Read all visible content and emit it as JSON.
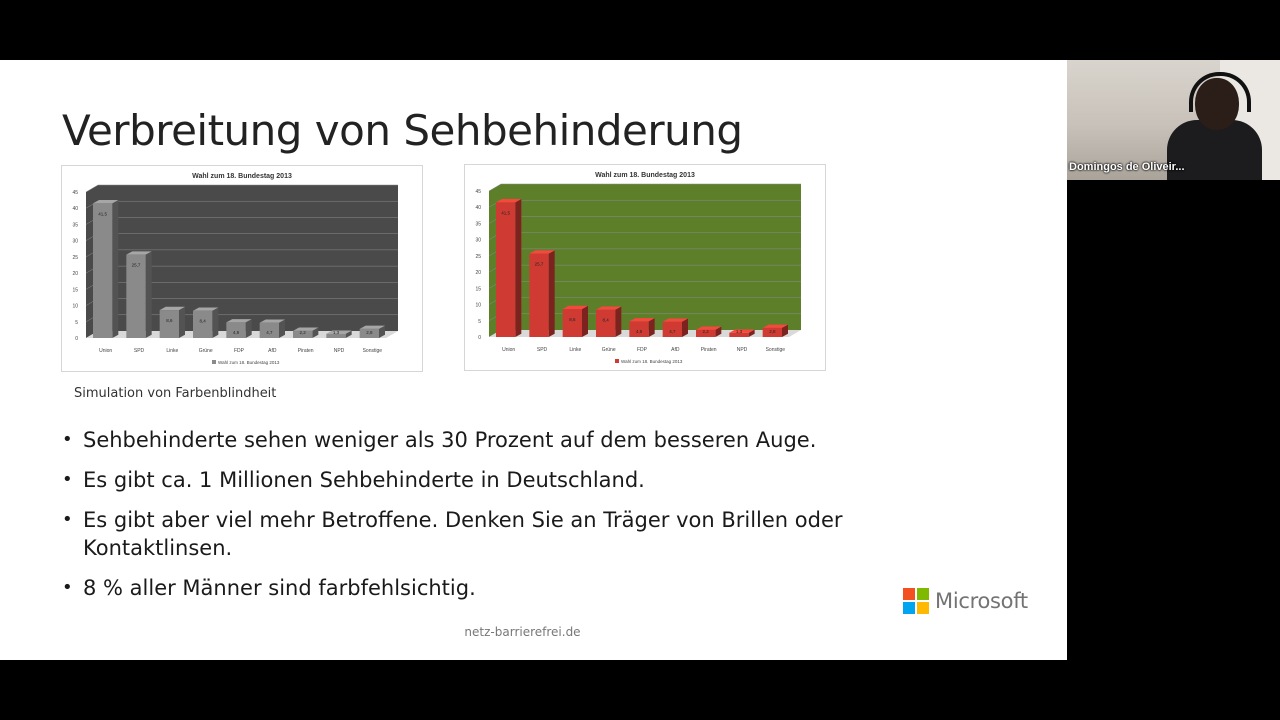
{
  "slide": {
    "title": "Verbreitung von Sehbehinderung",
    "caption": "Simulation von Farbenblindheit",
    "bullets": [
      "Sehbehinderte sehen weniger als 30 Prozent auf dem besseren Auge.",
      "Es gibt ca. 1 Millionen Sehbehinderte in Deutschland.",
      "Es gibt aber viel mehr Betroffene. Denken Sie an Träger von Brillen oder Kontaktlinsen.",
      "8 % aller Männer sind farbfehlsichtig."
    ],
    "footer": "netz-barrierefrei.de",
    "logo_text": "Microsoft",
    "logo_colors": [
      "#f25022",
      "#7fba00",
      "#00a4ef",
      "#ffb900"
    ]
  },
  "participant": {
    "name": "Domingos de Oliveir..."
  },
  "chart_data": [
    {
      "type": "bar",
      "title": "Wahl zum 18. Bundestag 2013",
      "categories": [
        "Union",
        "SPD",
        "Linke",
        "Grüne",
        "FDP",
        "AfD",
        "Piraten",
        "NPD",
        "Sonstige"
      ],
      "series": [
        {
          "name": "Wahl zum 18. Bundestag 2013",
          "values": [
            41.5,
            25.7,
            8.6,
            8.4,
            4.8,
            4.7,
            2.2,
            1.3,
            2.8
          ]
        }
      ],
      "ylim": [
        0,
        45
      ],
      "yticks": [
        0,
        5,
        10,
        15,
        20,
        25,
        30,
        35,
        40,
        45
      ],
      "bar_color": "#8a8a8a",
      "plot_background": "#4a4a4a",
      "legend": "bottom",
      "grid": true
    },
    {
      "type": "bar",
      "title": "Wahl zum 18. Bundestag 2013",
      "categories": [
        "Union",
        "SPD",
        "Linke",
        "Grüne",
        "FDP",
        "AfD",
        "Piraten",
        "NPD",
        "Sonstige"
      ],
      "series": [
        {
          "name": "Wahl zum 18. Bundestag 2013",
          "values": [
            41.5,
            25.7,
            8.6,
            8.4,
            4.8,
            4.7,
            2.2,
            1.3,
            2.8
          ]
        }
      ],
      "ylim": [
        0,
        45
      ],
      "yticks": [
        0,
        5,
        10,
        15,
        20,
        25,
        30,
        35,
        40,
        45
      ],
      "bar_color": "#cf3b33",
      "plot_background": "#5e7f2a",
      "legend": "bottom",
      "grid": true
    }
  ]
}
